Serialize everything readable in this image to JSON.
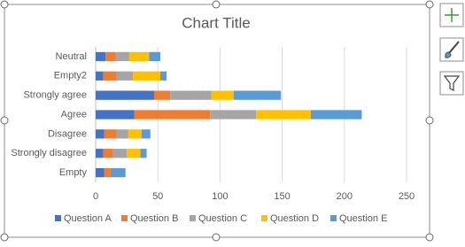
{
  "chart_data": {
    "type": "stacked-bar-horizontal",
    "title": "Chart Title",
    "categories": [
      "Neutral",
      "Empty2",
      "Strongly agree",
      "Agree",
      "Disagree",
      "Strongly disagree",
      "Empty"
    ],
    "series": [
      {
        "name": "Question A",
        "color": "#4472c4",
        "values": [
          8,
          6,
          47,
          31,
          7,
          6,
          7
        ]
      },
      {
        "name": "Question B",
        "color": "#ed7d31",
        "values": [
          8,
          11,
          13,
          61,
          10,
          8,
          5
        ]
      },
      {
        "name": "Question C",
        "color": "#a5a5a5",
        "values": [
          11,
          13,
          33,
          37,
          9,
          11,
          0
        ]
      },
      {
        "name": "Question D",
        "color": "#ffc000",
        "values": [
          16,
          22,
          18,
          44,
          11,
          11,
          0
        ]
      },
      {
        "name": "Question E",
        "color": "#5b9bd5",
        "values": [
          9,
          5,
          38,
          41,
          7,
          5,
          12
        ]
      }
    ],
    "xlim": [
      0,
      250
    ],
    "xticks": [
      0,
      50,
      100,
      150,
      200,
      250
    ],
    "grid": true,
    "legend": "bottom"
  }
}
